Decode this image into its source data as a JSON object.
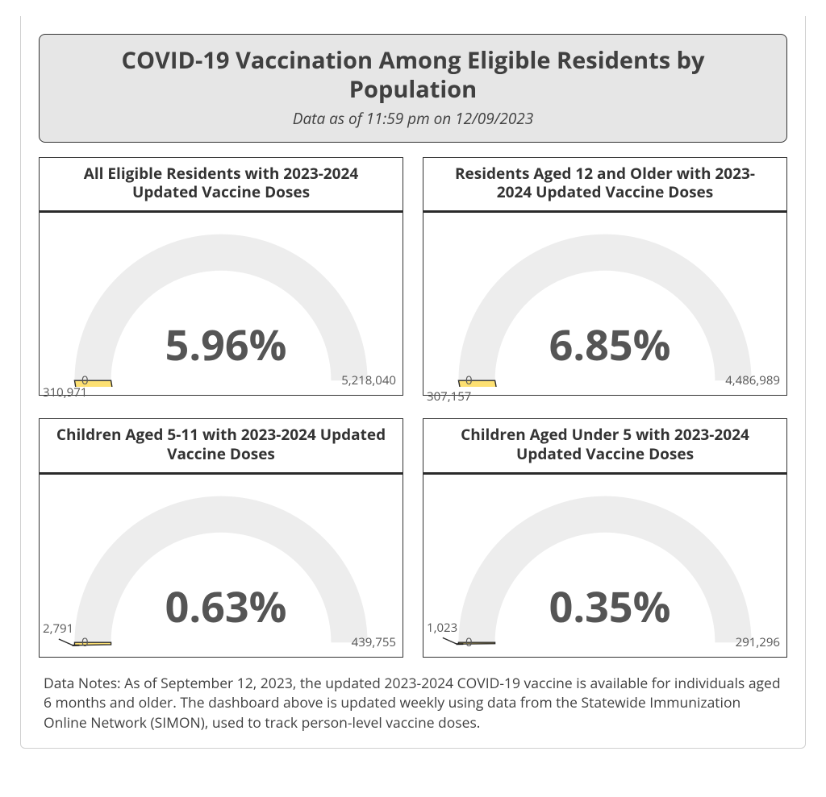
{
  "header": {
    "title": "COVID-19 Vaccination Among Eligible Residents by Population",
    "subtitle": "Data as of 11:59 pm on 12/09/2023"
  },
  "gauge_style": {
    "track_color": "#ededed",
    "fill_color": "#fde072",
    "fill_stroke": "#2a2a2a",
    "text_color": "#555555",
    "track_thickness": 46,
    "outer_radius": 185
  },
  "cards": [
    {
      "title": "All Eligible Residents with 2023-2024 Updated Vaccine Doses",
      "percent_text": "5.96%",
      "percent": 5.96,
      "count_text": "310,971",
      "min_text": "0",
      "max_text": "5,218,040"
    },
    {
      "title": "Residents Aged 12 and Older with 2023-2024 Updated Vaccine Doses",
      "percent_text": "6.85%",
      "percent": 6.85,
      "count_text": "307,157",
      "min_text": "0",
      "max_text": "4,486,989"
    },
    {
      "title": "Children Aged 5-11 with 2023-2024 Updated Vaccine Doses",
      "percent_text": "0.63%",
      "percent": 0.63,
      "count_text": "2,791",
      "min_text": "0",
      "max_text": "439,755"
    },
    {
      "title": "Children Aged Under 5 with 2023-2024 Updated Vaccine Doses",
      "percent_text": "0.35%",
      "percent": 0.35,
      "count_text": "1,023",
      "min_text": "0",
      "max_text": "291,296"
    }
  ],
  "notes": "Data Notes: As of September 12, 2023, the updated 2023-2024 COVID-19 vaccine is available for individuals aged 6 months and older. The dashboard above is updated weekly using data from the Statewide Immunization Online Network (SIMON), used to track person-level vaccine doses."
}
